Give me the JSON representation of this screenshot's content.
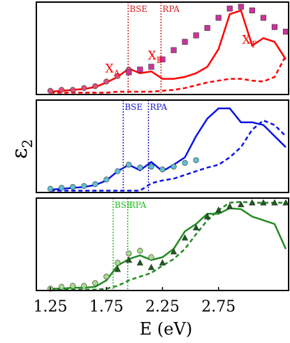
{
  "chart_data": [
    {
      "type": "line",
      "xlim": [
        1.125,
        3.375
      ],
      "ylim": [
        0,
        1
      ],
      "vlines": [
        {
          "x": 1.944,
          "label": "BSE",
          "color": "#d02020"
        },
        {
          "x": 2.237,
          "label": "RPA",
          "color": "#d02020"
        }
      ],
      "annotations": [
        {
          "text": "X",
          "sub": "A",
          "x": 1.74,
          "y": 0.24,
          "color": "#ff0000"
        },
        {
          "text": "X",
          "sub": "B",
          "x": 2.12,
          "y": 0.38,
          "color": "#ff0000"
        },
        {
          "text": "X",
          "sub": "T",
          "x": 2.96,
          "y": 0.55,
          "color": "#ff0000"
        }
      ],
      "series": [
        {
          "color": "#ff0000",
          "dash": false,
          "marker": null,
          "x": [
            1.25,
            1.35,
            1.45,
            1.55,
            1.65,
            1.75,
            1.85,
            1.95,
            2.05,
            2.15,
            2.25,
            2.35,
            2.45,
            2.55,
            2.65,
            2.75,
            2.85,
            2.95,
            3.05,
            3.15,
            3.25,
            3.35
          ],
          "values": [
            0.03,
            0.04,
            0.05,
            0.06,
            0.08,
            0.13,
            0.19,
            0.28,
            0.23,
            0.25,
            0.17,
            0.17,
            0.19,
            0.23,
            0.3,
            0.49,
            0.87,
            0.91,
            0.53,
            0.61,
            0.57,
            0.38
          ]
        },
        {
          "color": "#ff0000",
          "dash": true,
          "marker": null,
          "x": [
            1.25,
            1.35,
            1.45,
            1.55,
            1.65,
            1.75,
            1.85,
            1.95,
            2.05,
            2.15,
            2.25,
            2.35,
            2.45,
            2.55,
            2.65,
            2.75,
            2.85,
            2.95,
            3.05,
            3.15,
            3.25,
            3.35
          ],
          "values": [
            0.02,
            0.02,
            0.02,
            0.02,
            0.02,
            0.02,
            0.03,
            0.03,
            0.03,
            0.03,
            0.04,
            0.05,
            0.07,
            0.1,
            0.13,
            0.15,
            0.17,
            0.17,
            0.15,
            0.14,
            0.19,
            0.42
          ]
        },
        {
          "color": "#e0507a",
          "marker": "circle",
          "x": [
            1.25,
            1.35,
            1.45,
            1.55,
            1.65,
            1.75,
            1.85,
            1.95
          ],
          "values": [
            0.04,
            0.05,
            0.05,
            0.07,
            0.09,
            0.14,
            0.2,
            0.27
          ]
        },
        {
          "color": "#cc3399",
          "marker": "square",
          "x": [
            1.95,
            2.05,
            2.15,
            2.25,
            2.35,
            2.45,
            2.55,
            2.65,
            2.75,
            2.85,
            2.95,
            3.05,
            3.15,
            3.25,
            3.35
          ],
          "values": [
            0.24,
            0.27,
            0.3,
            0.38,
            0.48,
            0.57,
            0.64,
            0.72,
            0.83,
            0.93,
            0.95,
            0.91,
            0.83,
            0.73,
            0.68
          ]
        }
      ]
    },
    {
      "type": "line",
      "xlim": [
        1.125,
        3.375
      ],
      "ylim": [
        0,
        1
      ],
      "ylabel": "ε",
      "ylabel_sub": "2",
      "vlines": [
        {
          "x": 1.9,
          "label": "BSE",
          "color": "#1a1acc"
        },
        {
          "x": 2.125,
          "label": "RPA",
          "color": "#1a1acc"
        }
      ],
      "series": [
        {
          "color": "#0a14e6",
          "dash": false,
          "marker": null,
          "x": [
            1.25,
            1.35,
            1.45,
            1.55,
            1.65,
            1.75,
            1.85,
            1.95,
            2.05,
            2.15,
            2.25,
            2.35,
            2.45,
            2.55,
            2.65,
            2.75,
            2.85,
            2.95,
            3.05,
            3.15,
            3.25,
            3.35
          ],
          "values": [
            0.03,
            0.04,
            0.05,
            0.06,
            0.08,
            0.13,
            0.23,
            0.3,
            0.24,
            0.33,
            0.23,
            0.3,
            0.38,
            0.61,
            0.8,
            0.91,
            0.91,
            0.76,
            0.76,
            0.73,
            0.61,
            0.49
          ]
        },
        {
          "color": "#0a14e6",
          "dash": true,
          "marker": null,
          "x": [
            1.25,
            1.35,
            1.45,
            1.55,
            1.65,
            1.75,
            1.85,
            1.95,
            2.05,
            2.15,
            2.25,
            2.35,
            2.45,
            2.55,
            2.65,
            2.75,
            2.85,
            2.95,
            3.05,
            3.15,
            3.25,
            3.35
          ],
          "values": [
            0.02,
            0.02,
            0.02,
            0.02,
            0.02,
            0.02,
            0.02,
            0.02,
            0.02,
            0.1,
            0.13,
            0.15,
            0.19,
            0.23,
            0.27,
            0.3,
            0.38,
            0.49,
            0.68,
            0.78,
            0.73,
            0.61
          ]
        },
        {
          "color": "#5fc0d0",
          "marker": "circle",
          "x": [
            1.25,
            1.35,
            1.45,
            1.55,
            1.65,
            1.75,
            1.85,
            1.95,
            2.05,
            2.15,
            2.25,
            2.35,
            2.45,
            2.55
          ],
          "values": [
            0.04,
            0.05,
            0.06,
            0.07,
            0.09,
            0.14,
            0.23,
            0.3,
            0.27,
            0.28,
            0.25,
            0.28,
            0.32,
            0.35
          ]
        }
      ]
    },
    {
      "type": "line",
      "xlim": [
        1.125,
        3.375
      ],
      "ylim": [
        0,
        1
      ],
      "xlabel": "E (eV)",
      "xticks": [
        1.25,
        1.75,
        2.25,
        2.75
      ],
      "vlines": [
        {
          "x": 1.81,
          "label": "BSE",
          "color": "#22bb22"
        },
        {
          "x": 1.94,
          "label": "RPA",
          "color": "#22bb22"
        }
      ],
      "series": [
        {
          "color": "#228b22",
          "dash": false,
          "marker": null,
          "x": [
            1.25,
            1.35,
            1.45,
            1.55,
            1.65,
            1.75,
            1.85,
            1.95,
            2.05,
            2.15,
            2.25,
            2.35,
            2.45,
            2.55,
            2.65,
            2.75,
            2.85,
            2.95,
            3.05,
            3.15,
            3.25,
            3.35
          ],
          "values": [
            0.02,
            0.02,
            0.03,
            0.03,
            0.04,
            0.11,
            0.27,
            0.34,
            0.38,
            0.33,
            0.36,
            0.45,
            0.64,
            0.72,
            0.83,
            0.83,
            0.89,
            0.88,
            0.8,
            0.76,
            0.72,
            0.45
          ]
        },
        {
          "color": "#228b22",
          "dash": true,
          "marker": null,
          "x": [
            1.25,
            1.35,
            1.45,
            1.55,
            1.65,
            1.75,
            1.85,
            1.95,
            2.05,
            2.15,
            2.25,
            2.35,
            2.45,
            2.55,
            2.65,
            2.75,
            2.85,
            2.95,
            3.05,
            3.15,
            3.25,
            3.35
          ],
          "values": [
            0.01,
            0.01,
            0.01,
            0.01,
            0.01,
            0.02,
            0.05,
            0.11,
            0.15,
            0.19,
            0.27,
            0.34,
            0.45,
            0.61,
            0.76,
            0.87,
            0.95,
            0.96,
            0.95,
            0.95,
            0.95,
            0.95
          ]
        },
        {
          "color": "#a6dc8c",
          "marker": "circle",
          "x": [
            1.25,
            1.35,
            1.45,
            1.55,
            1.65,
            1.75,
            1.85,
            1.95,
            2.05,
            2.15
          ],
          "values": [
            0.02,
            0.04,
            0.05,
            0.05,
            0.08,
            0.15,
            0.3,
            0.4,
            0.43,
            0.36
          ]
        },
        {
          "color": "#1e5a1e",
          "marker": "triangle",
          "x": [
            1.85,
            1.95,
            2.05,
            2.15,
            2.25,
            2.35,
            2.45,
            2.55,
            2.65,
            2.75,
            2.85,
            2.95,
            3.05,
            3.15,
            3.25,
            3.35
          ],
          "values": [
            0.23,
            0.33,
            0.3,
            0.25,
            0.3,
            0.42,
            0.57,
            0.68,
            0.8,
            0.87,
            0.91,
            0.93,
            0.95,
            0.95,
            0.95,
            0.95
          ]
        }
      ]
    }
  ]
}
